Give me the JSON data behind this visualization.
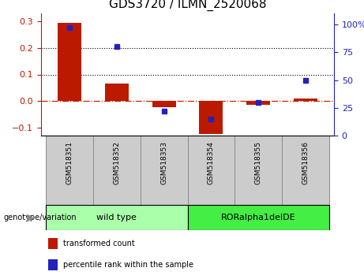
{
  "title": "GDS3720 / ILMN_2520068",
  "samples": [
    "GSM518351",
    "GSM518352",
    "GSM518353",
    "GSM518354",
    "GSM518355",
    "GSM518356"
  ],
  "red_bars": [
    0.295,
    0.065,
    -0.022,
    -0.125,
    -0.015,
    0.01
  ],
  "blue_dots_pct": [
    97,
    80,
    22,
    15,
    30,
    50
  ],
  "ylim_left": [
    -0.13,
    0.33
  ],
  "ylim_right": [
    0,
    110
  ],
  "yticks_left": [
    -0.1,
    0.0,
    0.1,
    0.2,
    0.3
  ],
  "yticks_right": [
    0,
    25,
    50,
    75,
    100
  ],
  "ytick_labels_right": [
    "0",
    "25",
    "50",
    "75",
    "100%"
  ],
  "hline_values": [
    0.1,
    0.2
  ],
  "bar_color": "#bb1a00",
  "dot_color": "#2222bb",
  "zero_line_color": "#cc2200",
  "group1_color": "#aaffaa",
  "group2_color": "#44ee44",
  "group1_label": "wild type",
  "group2_label": "RORalpha1delDE",
  "group_header": "genotype/variation",
  "legend_red": "transformed count",
  "legend_blue": "percentile rank within the sample",
  "bar_width": 0.5,
  "title_fontsize": 11,
  "tick_fontsize": 8,
  "label_fontsize": 7
}
